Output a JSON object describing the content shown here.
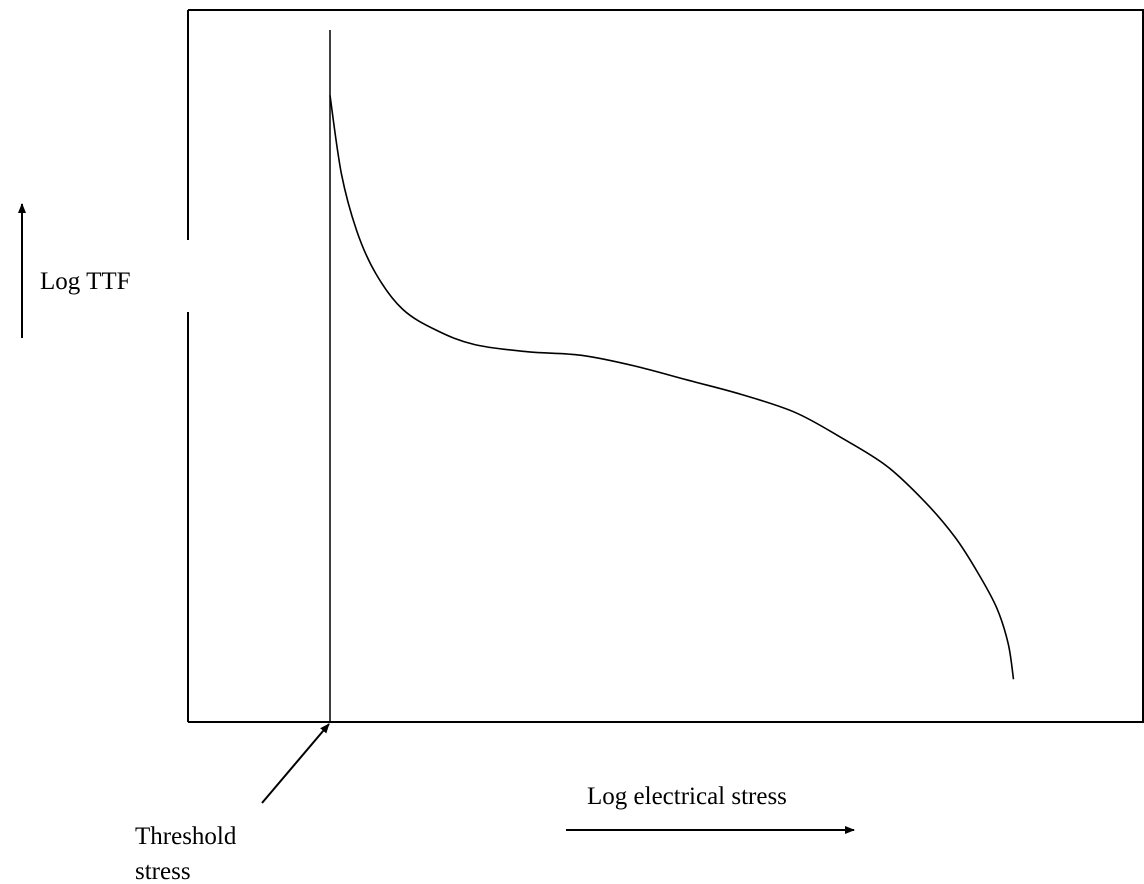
{
  "chart_data": {
    "type": "line",
    "title": "",
    "xlabel": "Log electrical stress",
    "ylabel": "Log TTF",
    "threshold_label": [
      "Threshold",
      "stress"
    ],
    "xlim": [
      0,
      100
    ],
    "ylim": [
      0,
      100
    ],
    "grid": false,
    "legend": "none",
    "series": [
      {
        "values": [
          {
            "x": 0,
            "y": 88
          },
          {
            "x": 1.5,
            "y": 77
          },
          {
            "x": 3.5,
            "y": 69
          },
          {
            "x": 6,
            "y": 63
          },
          {
            "x": 9.5,
            "y": 58
          },
          {
            "x": 14,
            "y": 55
          },
          {
            "x": 19,
            "y": 53
          },
          {
            "x": 26,
            "y": 52
          },
          {
            "x": 33,
            "y": 51.5
          },
          {
            "x": 40,
            "y": 50
          },
          {
            "x": 47,
            "y": 48
          },
          {
            "x": 54,
            "y": 46
          },
          {
            "x": 61,
            "y": 43.5
          },
          {
            "x": 67,
            "y": 40
          },
          {
            "x": 73,
            "y": 36
          },
          {
            "x": 78,
            "y": 31
          },
          {
            "x": 82,
            "y": 26
          },
          {
            "x": 85,
            "y": 21
          },
          {
            "x": 87.5,
            "y": 16
          },
          {
            "x": 89,
            "y": 11
          },
          {
            "x": 89.7,
            "y": 6
          }
        ]
      }
    ],
    "colors": {
      "line": "#000000",
      "axis": "#000000"
    }
  }
}
